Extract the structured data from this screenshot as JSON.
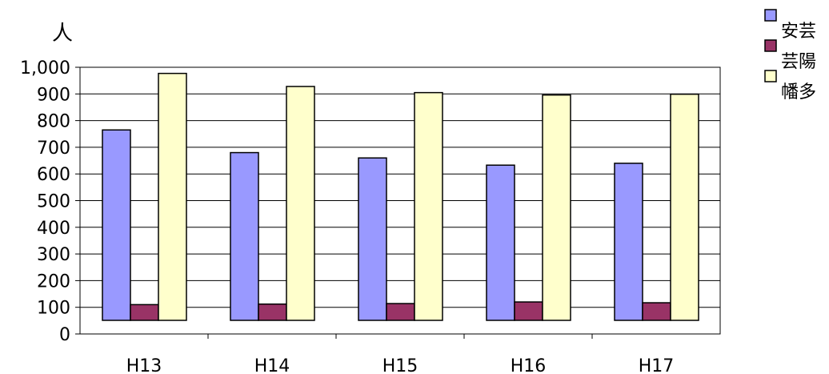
{
  "chart_data": {
    "type": "bar",
    "unit_label": "人",
    "categories": [
      "H13",
      "H14",
      "H15",
      "H16",
      "H17"
    ],
    "ylim": [
      0,
      1000
    ],
    "yticks": [
      "0",
      "100",
      "200",
      "300",
      "400",
      "500",
      "600",
      "700",
      "800",
      "900",
      "1,000"
    ],
    "grid": true,
    "legend_position": "top-right",
    "series": [
      {
        "name": "安芸",
        "color": "#9999ff",
        "values": [
          765,
          680,
          660,
          633,
          640
        ]
      },
      {
        "name": "芸陽",
        "color": "#993366",
        "values": [
          110,
          112,
          114,
          120,
          117
        ]
      },
      {
        "name": "幡多",
        "color": "#ffffcc",
        "values": [
          977,
          928,
          905,
          896,
          899
        ]
      }
    ]
  }
}
